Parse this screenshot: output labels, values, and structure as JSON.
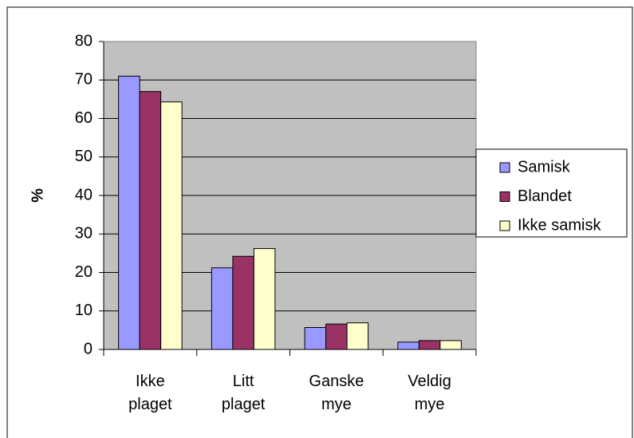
{
  "chart_data": {
    "type": "bar",
    "y_label": "%",
    "categories": [
      [
        "Ikke",
        "plaget"
      ],
      [
        "Litt",
        "plaget"
      ],
      [
        "Ganske",
        "mye"
      ],
      [
        "Veldig",
        "mye"
      ]
    ],
    "series": [
      {
        "name": "Samisk",
        "color": "#9999ff",
        "values": [
          71,
          21.2,
          5.7,
          1.9
        ]
      },
      {
        "name": "Blandet",
        "color": "#993366",
        "values": [
          67,
          24.2,
          6.6,
          2.3
        ]
      },
      {
        "name": "Ikke samisk",
        "color": "#ffffcc",
        "values": [
          64.3,
          26.2,
          6.9,
          2.3
        ]
      }
    ],
    "ylim": [
      0,
      80
    ],
    "yticks": [
      0,
      10,
      20,
      30,
      40,
      50,
      60,
      70,
      80
    ],
    "grid": true,
    "legend": "right"
  }
}
